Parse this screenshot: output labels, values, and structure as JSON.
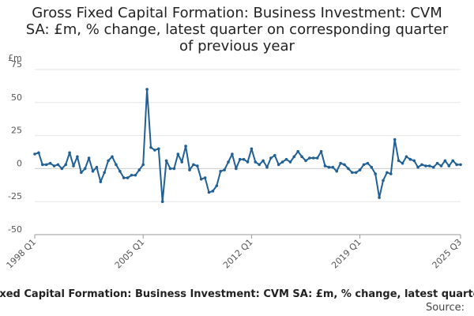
{
  "chart_data": {
    "type": "line",
    "title_lines": [
      "Gross Fixed Capital Formation: Business Investment: CVM",
      "SA: £m, % change, latest quarter on corresponding quarter",
      "of previous year"
    ],
    "ylabel": "£m",
    "ylim": [
      -50,
      75
    ],
    "y_ticks": [
      "75",
      "50",
      "25",
      "0",
      "-25",
      "-50"
    ],
    "y_tick_values": [
      75,
      50,
      25,
      0,
      -25,
      -50
    ],
    "x_start": "1998 Q1",
    "x_end": "2025 Q3",
    "x_tick_labels": [
      "1998 Q1",
      "2005 Q1",
      "2012 Q1",
      "2019 Q1",
      "2025 Q3"
    ],
    "x_tick_indices": [
      0,
      28,
      56,
      84,
      110
    ],
    "grid": true,
    "legend": "none",
    "series": [
      {
        "color": "#206095",
        "values": [
          11,
          12,
          3,
          3,
          4,
          2,
          3,
          0,
          3,
          12,
          2,
          9,
          -3,
          0,
          8,
          -2,
          1,
          -10,
          -3,
          6,
          9,
          3,
          -2,
          -7,
          -7,
          -5,
          -5,
          -1,
          3,
          60,
          16,
          14,
          15,
          -25,
          6,
          0,
          0,
          11,
          5,
          17,
          -1,
          3,
          2,
          -8,
          -7,
          -18,
          -17,
          -13,
          -2,
          -1,
          5,
          11,
          0,
          7,
          7,
          5,
          15,
          5,
          3,
          6,
          1,
          8,
          10,
          3,
          5,
          7,
          5,
          9,
          13,
          9,
          6,
          8,
          8,
          8,
          13,
          2,
          1,
          1,
          -2,
          4,
          3,
          0,
          -3,
          -3,
          -1,
          3,
          4,
          1,
          -4,
          -22,
          -9,
          -3,
          -4,
          22,
          6,
          4,
          9,
          7,
          6,
          1,
          3,
          2,
          2,
          1,
          4,
          2,
          6,
          2,
          6,
          3,
          3
        ]
      }
    ]
  },
  "footer": {
    "caption": "Gross Fixed Capital Formation: Business Investment: CVM SA: £m, % change, latest quarter on corresponding quarter",
    "source": "Source:"
  }
}
